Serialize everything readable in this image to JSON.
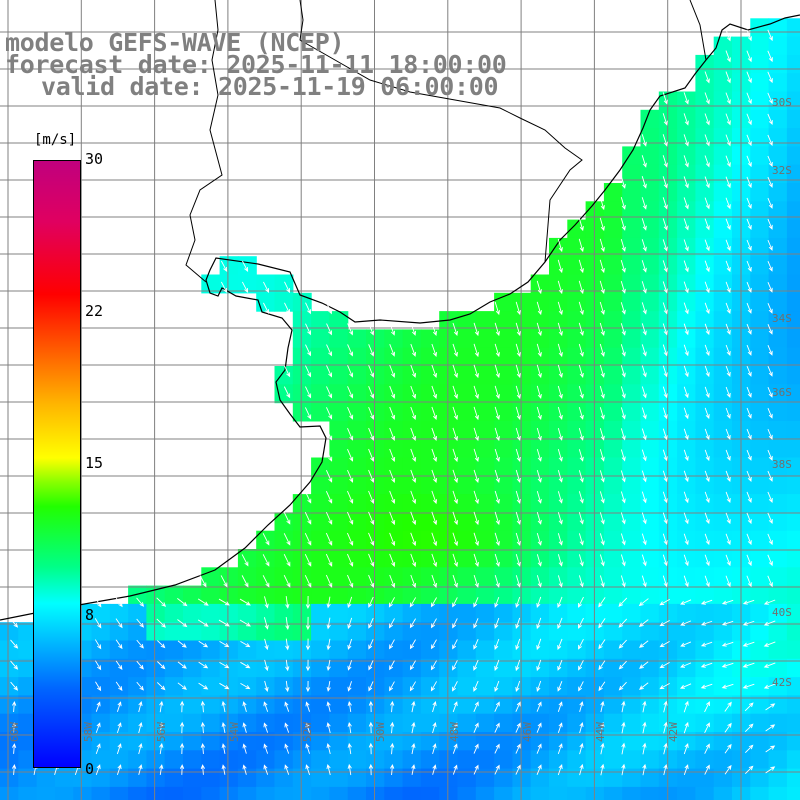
{
  "title": {
    "line1": "modelo GEFS-WAVE (NCEP)",
    "line2": "forecast date: 2025-11-11 18:00:00",
    "line3": "valid date: 2025-11-19 06:00:00"
  },
  "colorbar": {
    "unit": "[m/s]",
    "min": 0,
    "max": 30,
    "ticks": [
      "30",
      "22",
      "15",
      "8",
      "0"
    ],
    "tick_values": [
      30,
      22,
      15,
      8,
      0
    ]
  },
  "map": {
    "variable": "wind speed and direction",
    "ocean_colors": {
      "low": "#0066ff",
      "mid": "#00ffff",
      "high": "#33ff33",
      "land": "#ffffff"
    },
    "grid_color": "#808080",
    "coast_color": "#000000",
    "vector_color": "#ffffff",
    "lon_labels": [
      "60W",
      "58W",
      "56W",
      "54W",
      "52W",
      "50W",
      "48W",
      "46W",
      "44W",
      "42W"
    ],
    "lat_labels": [
      "30S",
      "32S",
      "34S",
      "36S",
      "38S",
      "40S",
      "42S"
    ]
  }
}
